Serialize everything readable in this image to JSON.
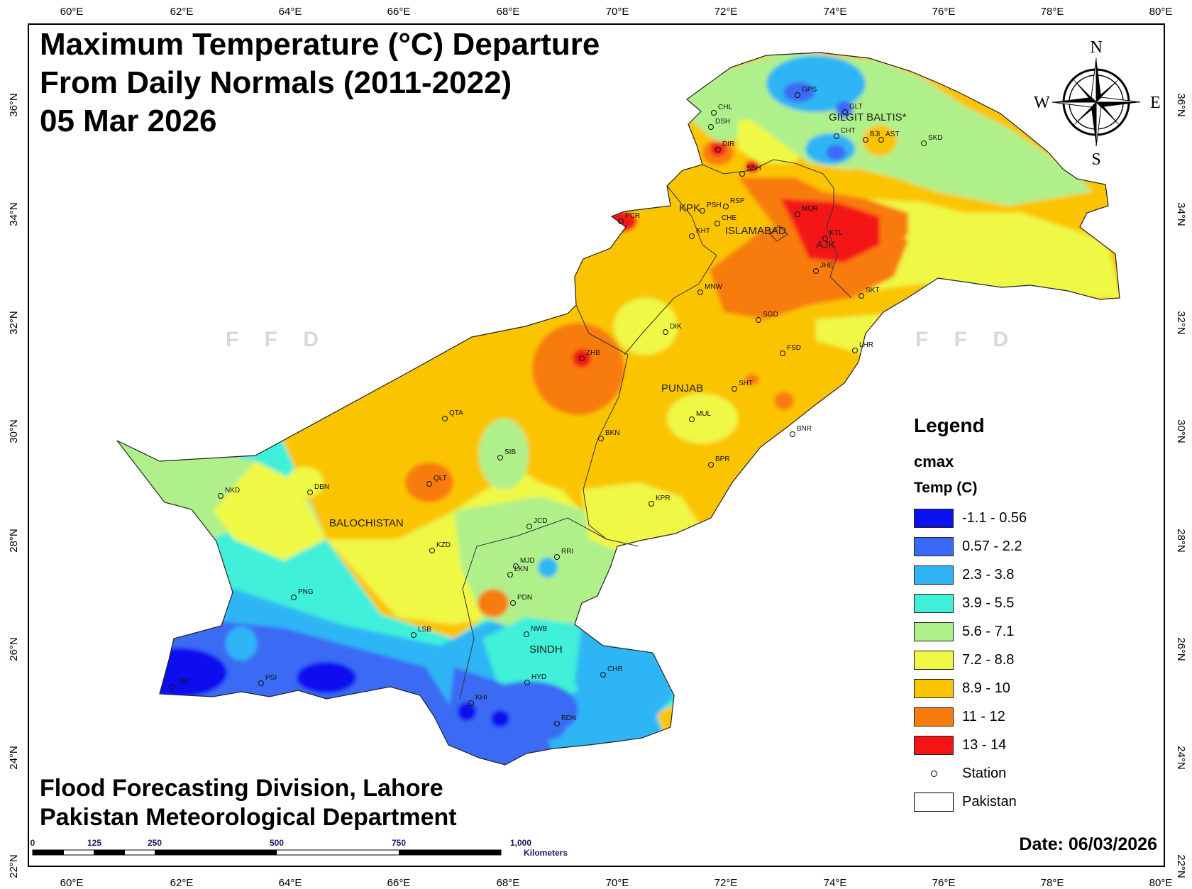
{
  "map": {
    "title_lines": [
      "Maximum Temperature (°C) Departure",
      "From Daily Normals (2011-2022)",
      "05 Mar 2026"
    ],
    "credit_lines": [
      "Flood Forecasting Division, Lahore",
      "Pakistan Meteorological Department"
    ],
    "date": "Date: 06/03/2026",
    "watermark": "F F D",
    "compass": {
      "n": "N",
      "s": "S",
      "e": "E",
      "w": "W"
    },
    "longitude_ticks": [
      "60°E",
      "62°E",
      "64°E",
      "66°E",
      "68°E",
      "70°E",
      "72°E",
      "74°E",
      "76°E",
      "78°E",
      "80°E"
    ],
    "latitude_ticks": [
      "36°N",
      "34°N",
      "32°N",
      "30°N",
      "28°N",
      "26°N",
      "24°N",
      "22°N"
    ],
    "scale_bar": {
      "labels": [
        "0",
        "125",
        "250",
        "500",
        "750",
        "1,000"
      ],
      "unit": "Kilometers"
    },
    "regions": [
      "GILGIT BALTIS*",
      "KPK",
      "ISLAMABAD",
      "AJK",
      "PUNJAB",
      "BALOCHISTAN",
      "SINDH"
    ],
    "stations": [
      "GPS",
      "GLT",
      "CHL",
      "DSH",
      "CHT",
      "BJI",
      "AST",
      "SKD",
      "DIR",
      "SSH",
      "PCR",
      "PSH",
      "RSP",
      "CHE",
      "KHT",
      "MUR",
      "KTL",
      "JHE",
      "SKT",
      "MNW",
      "SGD",
      "DIK",
      "ZHB",
      "FSD",
      "LHR",
      "SHT",
      "MUL",
      "BNR",
      "QTA",
      "BKN",
      "SIB",
      "BPR",
      "NKD",
      "DBN",
      "QLT",
      "KPR",
      "JCD",
      "KZD",
      "RRI",
      "LKN",
      "MJD",
      "PDN",
      "PNG",
      "LSB",
      "NWB",
      "HYD",
      "CHR",
      "PSI",
      "JWI",
      "KHI",
      "BDN"
    ]
  },
  "legend": {
    "title": "Legend",
    "layer": "cmax",
    "field": "Temp (C)",
    "classes": [
      {
        "label": "-1.1 - 0.56",
        "color": "#0a10f0"
      },
      {
        "label": "0.57 - 2.2",
        "color": "#3a6af5"
      },
      {
        "label": "2.3 - 3.8",
        "color": "#2fb5f5"
      },
      {
        "label": "3.9 - 5.5",
        "color": "#40f0d8"
      },
      {
        "label": "5.6 - 7.1",
        "color": "#b0f08a"
      },
      {
        "label": "7.2 - 8.8",
        "color": "#eef845"
      },
      {
        "label": "8.9 - 10",
        "color": "#fbc400"
      },
      {
        "label": "11 - 12",
        "color": "#f87c0c"
      },
      {
        "label": "13 - 14",
        "color": "#f41414"
      }
    ],
    "station_label": "Station",
    "boundary_label": "Pakistan"
  }
}
